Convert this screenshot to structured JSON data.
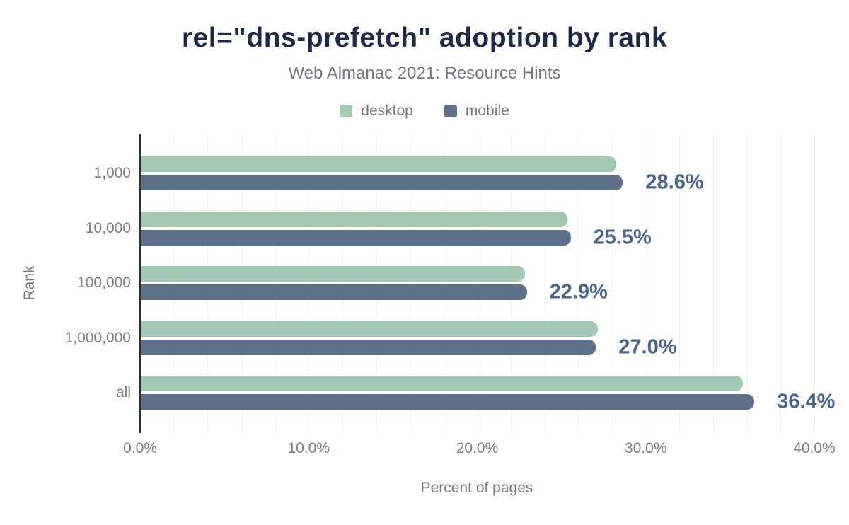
{
  "chart_data": {
    "type": "bar",
    "orientation": "horizontal",
    "title": "rel=\"dns-prefetch\" adoption by rank",
    "subtitle": "Web Almanac 2021: Resource Hints",
    "categories": [
      "1,000",
      "10,000",
      "100,000",
      "1,000,000",
      "all"
    ],
    "series": [
      {
        "name": "desktop",
        "color": "#a3c9b4",
        "values": [
          28.2,
          25.3,
          22.8,
          27.1,
          35.7
        ]
      },
      {
        "name": "mobile",
        "color": "#5e7189",
        "values": [
          28.6,
          25.5,
          22.9,
          27.0,
          36.4
        ]
      }
    ],
    "data_labels": [
      "28.6%",
      "25.5%",
      "22.9%",
      "27.0%",
      "36.4%"
    ],
    "xlabel": "Percent of pages",
    "ylabel": "Rank",
    "xlim": [
      0,
      40
    ],
    "x_ticks": [
      {
        "value": 0,
        "label": "0.0%"
      },
      {
        "value": 10,
        "label": "10.0%"
      },
      {
        "value": 20,
        "label": "20.0%"
      },
      {
        "value": 30,
        "label": "30.0%"
      },
      {
        "value": 40,
        "label": "40.0%"
      }
    ],
    "grid": "minor vertical gridlines every 2%",
    "legend_position": "top center"
  },
  "colors": {
    "title": "#1e2a45",
    "secondary_text": "#757a80",
    "category_text": "#7b8087",
    "data_label": "#4c6687",
    "axis_line": "#2e2e2e",
    "gridline": "#f0f1f2",
    "desktop": "#a3c9b4",
    "mobile": "#5e7189",
    "background": "#ffffff"
  }
}
